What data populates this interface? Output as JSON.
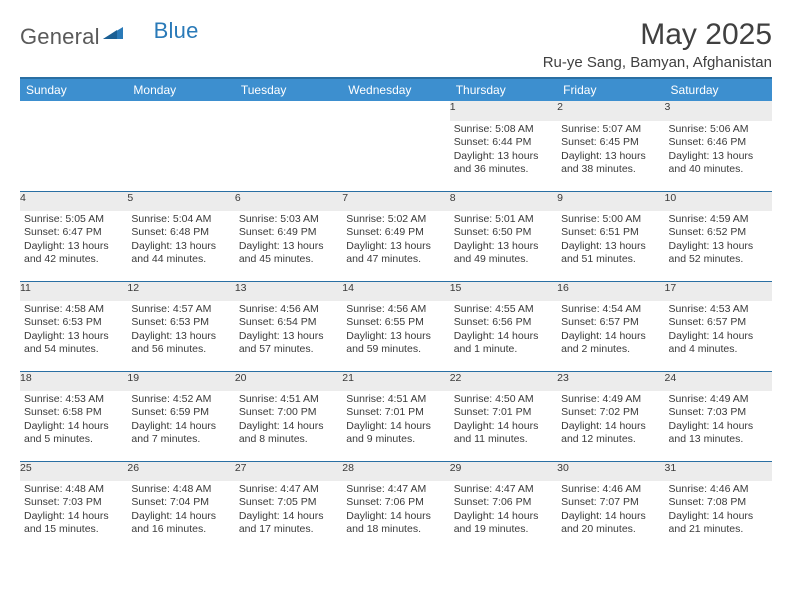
{
  "brand": {
    "text_gray": "General",
    "text_blue": "Blue"
  },
  "title": "May 2025",
  "location": "Ru-ye Sang, Bamyan, Afghanistan",
  "colors": {
    "header_bg": "#3d8fcf",
    "header_border": "#2a6fa3",
    "daynum_bg": "#ececec",
    "text": "#3a3a3a",
    "brand_gray": "#5a5a5a",
    "brand_blue": "#2a7ab8"
  },
  "weekdays": [
    "Sunday",
    "Monday",
    "Tuesday",
    "Wednesday",
    "Thursday",
    "Friday",
    "Saturday"
  ],
  "weeks": [
    [
      null,
      null,
      null,
      null,
      {
        "n": "1",
        "sr": "5:08 AM",
        "ss": "6:44 PM",
        "dl": "13 hours and 36 minutes."
      },
      {
        "n": "2",
        "sr": "5:07 AM",
        "ss": "6:45 PM",
        "dl": "13 hours and 38 minutes."
      },
      {
        "n": "3",
        "sr": "5:06 AM",
        "ss": "6:46 PM",
        "dl": "13 hours and 40 minutes."
      }
    ],
    [
      {
        "n": "4",
        "sr": "5:05 AM",
        "ss": "6:47 PM",
        "dl": "13 hours and 42 minutes."
      },
      {
        "n": "5",
        "sr": "5:04 AM",
        "ss": "6:48 PM",
        "dl": "13 hours and 44 minutes."
      },
      {
        "n": "6",
        "sr": "5:03 AM",
        "ss": "6:49 PM",
        "dl": "13 hours and 45 minutes."
      },
      {
        "n": "7",
        "sr": "5:02 AM",
        "ss": "6:49 PM",
        "dl": "13 hours and 47 minutes."
      },
      {
        "n": "8",
        "sr": "5:01 AM",
        "ss": "6:50 PM",
        "dl": "13 hours and 49 minutes."
      },
      {
        "n": "9",
        "sr": "5:00 AM",
        "ss": "6:51 PM",
        "dl": "13 hours and 51 minutes."
      },
      {
        "n": "10",
        "sr": "4:59 AM",
        "ss": "6:52 PM",
        "dl": "13 hours and 52 minutes."
      }
    ],
    [
      {
        "n": "11",
        "sr": "4:58 AM",
        "ss": "6:53 PM",
        "dl": "13 hours and 54 minutes."
      },
      {
        "n": "12",
        "sr": "4:57 AM",
        "ss": "6:53 PM",
        "dl": "13 hours and 56 minutes."
      },
      {
        "n": "13",
        "sr": "4:56 AM",
        "ss": "6:54 PM",
        "dl": "13 hours and 57 minutes."
      },
      {
        "n": "14",
        "sr": "4:56 AM",
        "ss": "6:55 PM",
        "dl": "13 hours and 59 minutes."
      },
      {
        "n": "15",
        "sr": "4:55 AM",
        "ss": "6:56 PM",
        "dl": "14 hours and 1 minute."
      },
      {
        "n": "16",
        "sr": "4:54 AM",
        "ss": "6:57 PM",
        "dl": "14 hours and 2 minutes."
      },
      {
        "n": "17",
        "sr": "4:53 AM",
        "ss": "6:57 PM",
        "dl": "14 hours and 4 minutes."
      }
    ],
    [
      {
        "n": "18",
        "sr": "4:53 AM",
        "ss": "6:58 PM",
        "dl": "14 hours and 5 minutes."
      },
      {
        "n": "19",
        "sr": "4:52 AM",
        "ss": "6:59 PM",
        "dl": "14 hours and 7 minutes."
      },
      {
        "n": "20",
        "sr": "4:51 AM",
        "ss": "7:00 PM",
        "dl": "14 hours and 8 minutes."
      },
      {
        "n": "21",
        "sr": "4:51 AM",
        "ss": "7:01 PM",
        "dl": "14 hours and 9 minutes."
      },
      {
        "n": "22",
        "sr": "4:50 AM",
        "ss": "7:01 PM",
        "dl": "14 hours and 11 minutes."
      },
      {
        "n": "23",
        "sr": "4:49 AM",
        "ss": "7:02 PM",
        "dl": "14 hours and 12 minutes."
      },
      {
        "n": "24",
        "sr": "4:49 AM",
        "ss": "7:03 PM",
        "dl": "14 hours and 13 minutes."
      }
    ],
    [
      {
        "n": "25",
        "sr": "4:48 AM",
        "ss": "7:03 PM",
        "dl": "14 hours and 15 minutes."
      },
      {
        "n": "26",
        "sr": "4:48 AM",
        "ss": "7:04 PM",
        "dl": "14 hours and 16 minutes."
      },
      {
        "n": "27",
        "sr": "4:47 AM",
        "ss": "7:05 PM",
        "dl": "14 hours and 17 minutes."
      },
      {
        "n": "28",
        "sr": "4:47 AM",
        "ss": "7:06 PM",
        "dl": "14 hours and 18 minutes."
      },
      {
        "n": "29",
        "sr": "4:47 AM",
        "ss": "7:06 PM",
        "dl": "14 hours and 19 minutes."
      },
      {
        "n": "30",
        "sr": "4:46 AM",
        "ss": "7:07 PM",
        "dl": "14 hours and 20 minutes."
      },
      {
        "n": "31",
        "sr": "4:46 AM",
        "ss": "7:08 PM",
        "dl": "14 hours and 21 minutes."
      }
    ]
  ],
  "labels": {
    "sunrise": "Sunrise:",
    "sunset": "Sunset:",
    "daylight": "Daylight:"
  }
}
